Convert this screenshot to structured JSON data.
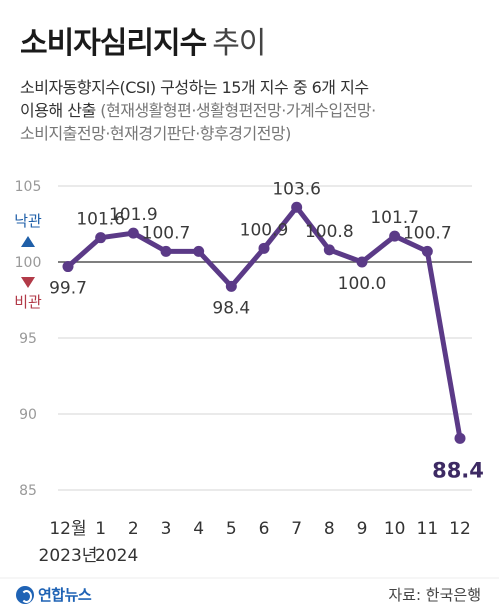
{
  "header": {
    "title_main": "소비자심리지수",
    "title_sub": "추이",
    "subtitle_line1": "소비자동향지수(CSI) 구성하는 15개 지수 중 6개 지수",
    "subtitle_line2_main": "이용해 산출",
    "subtitle_line2_note": "(현재생활형편·생활형편전망·가계수입전망·",
    "subtitle_line3_note": "소비지출전망·현재경기판단·향후경기전망)"
  },
  "chart_data": {
    "type": "line",
    "categories": [
      "12월",
      "1",
      "2",
      "3",
      "4",
      "5",
      "6",
      "7",
      "8",
      "9",
      "10",
      "11",
      "12"
    ],
    "year_labels": [
      "2023년",
      "2024"
    ],
    "values": [
      99.7,
      101.6,
      101.9,
      100.7,
      100.7,
      98.4,
      100.9,
      103.6,
      100.8,
      100.0,
      101.7,
      100.7,
      88.4
    ],
    "data_labels": [
      "99.7",
      "101.6",
      "101.9",
      "100.7",
      "",
      "98.4",
      "100.9",
      "103.6",
      "100.8",
      "100.0",
      "101.7",
      "100.7",
      "88.4"
    ],
    "ylim": [
      85,
      105
    ],
    "yticks": [
      85,
      90,
      95,
      100,
      105
    ],
    "baseline": 100,
    "upper_label": "낙관",
    "lower_label": "비관",
    "line_color": "#5b3a87",
    "upper_color": "#1f5fa8",
    "lower_color": "#b23a48",
    "grid": true
  },
  "footer": {
    "logo": "연합뉴스",
    "source": "자료: 한국은행"
  }
}
